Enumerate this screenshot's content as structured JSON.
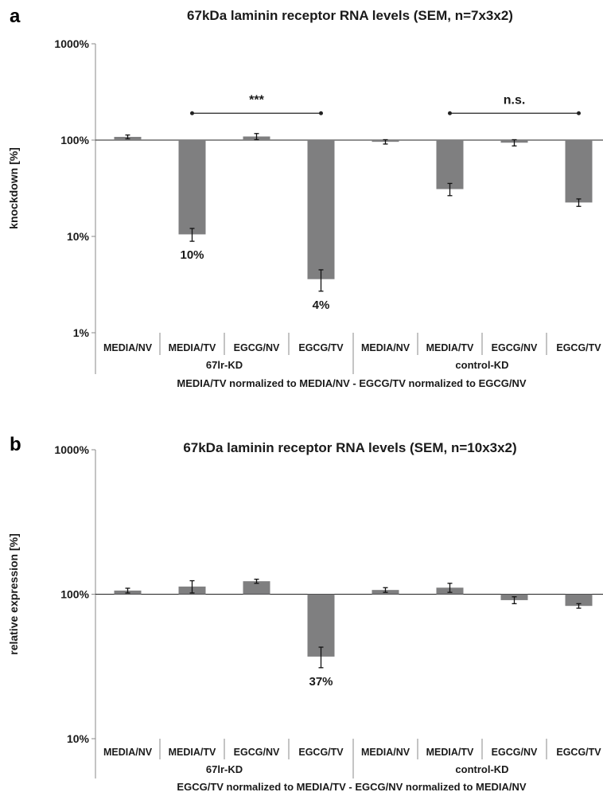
{
  "colors": {
    "bar": "#7f7f80",
    "axis": "#8a8a8a",
    "text": "#1a1a1a"
  },
  "chart_data": [
    {
      "panel": "a",
      "type": "bar",
      "title": "67kDa laminin receptor RNA levels (SEM, n=7x3x2)",
      "ylabel": "knockdown [%]",
      "yscale": "log",
      "baseline": 100,
      "ylim": [
        1,
        1000
      ],
      "yticks": [
        1,
        10,
        100,
        1000
      ],
      "ytick_labels": [
        "1%",
        "10%",
        "100%",
        "1000%"
      ],
      "categories": [
        "MEDIA/NV",
        "MEDIA/TV",
        "EGCG/NV",
        "EGCG/TV",
        "MEDIA/NV",
        "MEDIA/TV",
        "EGCG/NV",
        "EGCG/TV"
      ],
      "values": [
        108,
        10.5,
        109,
        3.6,
        96,
        31,
        94,
        22.5
      ],
      "errors": [
        5,
        1.6,
        8,
        0.9,
        5,
        4.5,
        7,
        2
      ],
      "data_labels": [
        "",
        "10%",
        "",
        "4%",
        "",
        "",
        "",
        ""
      ],
      "groups": [
        {
          "label": "67lr-KD",
          "start": 0,
          "end": 3
        },
        {
          "label": "control-KD",
          "start": 4,
          "end": 7
        }
      ],
      "note": "MEDIA/TV normalized to MEDIA/NV - EGCG/TV normalized to EGCG/NV",
      "significance": [
        {
          "from": 1,
          "to": 3,
          "label": "***",
          "y": 190
        },
        {
          "from": 5,
          "to": 7,
          "label": "n.s.",
          "y": 190
        }
      ]
    },
    {
      "panel": "b",
      "type": "bar",
      "title": "67kDa laminin receptor RNA levels (SEM, n=10x3x2)",
      "ylabel": "relative expression [%]",
      "yscale": "log",
      "baseline": 100,
      "ylim": [
        10,
        1000
      ],
      "yticks": [
        10,
        100,
        1000
      ],
      "ytick_labels": [
        "10%",
        "100%",
        "1000%"
      ],
      "categories": [
        "MEDIA/NV",
        "MEDIA/TV",
        "EGCG/NV",
        "EGCG/TV",
        "MEDIA/NV",
        "MEDIA/TV",
        "EGCG/NV",
        "EGCG/TV"
      ],
      "values": [
        106,
        113,
        123,
        37,
        107,
        111,
        91,
        83
      ],
      "errors": [
        4,
        11,
        4,
        6,
        4,
        8,
        5,
        3
      ],
      "data_labels": [
        "",
        "",
        "",
        "37%",
        "",
        "",
        "",
        ""
      ],
      "groups": [
        {
          "label": "67lr-KD",
          "start": 0,
          "end": 3
        },
        {
          "label": "control-KD",
          "start": 4,
          "end": 7
        }
      ],
      "note": "EGCG/TV normalized to MEDIA/TV - EGCG/NV normalized to MEDIA/NV",
      "significance": []
    }
  ]
}
